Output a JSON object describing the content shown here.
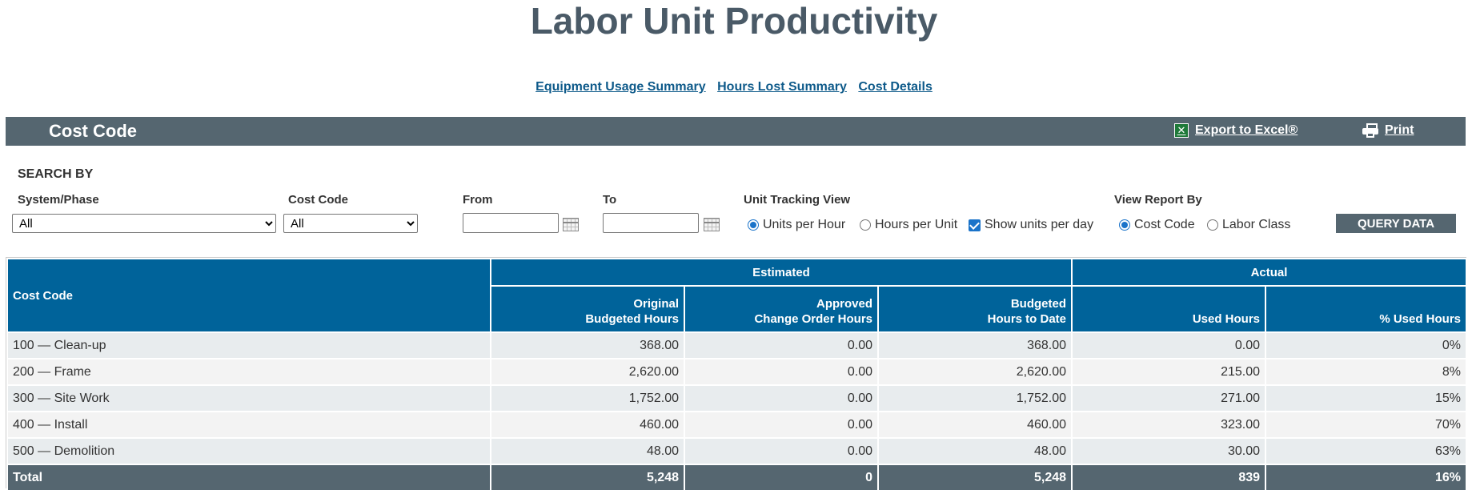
{
  "page_title": "Labor Unit Productivity",
  "nav_links": [
    "Equipment Usage Summary",
    "Hours Lost Summary",
    "Cost Details"
  ],
  "header": {
    "title": "Cost Code",
    "export_label": "Export to Excel®",
    "print_label": "Print"
  },
  "search": {
    "heading": "SEARCH BY",
    "system_phase": {
      "label": "System/Phase",
      "value": "All"
    },
    "cost_code": {
      "label": "Cost Code",
      "value": "All"
    },
    "from": {
      "label": "From",
      "value": ""
    },
    "to": {
      "label": "To",
      "value": ""
    },
    "unit_tracking": {
      "label": "Unit Tracking View",
      "units_per_hour": "Units per Hour",
      "hours_per_unit": "Hours per Unit",
      "show_units_per_day": "Show units per day"
    },
    "view_report": {
      "label": "View Report By",
      "cost_code": "Cost Code",
      "labor_class": "Labor Class"
    },
    "query_button": "QUERY DATA"
  },
  "table": {
    "col_cost_code": "Cost Code",
    "group_estimated": "Estimated",
    "group_actual": "Actual",
    "h_orig_1": "Original",
    "h_orig_2": "Budgeted Hours",
    "h_appr_1": "Approved",
    "h_appr_2": "Change Order Hours",
    "h_budg_1": "Budgeted",
    "h_budg_2": "Hours to Date",
    "h_used": "Used Hours",
    "h_pct": "% Used Hours",
    "rows": [
      {
        "code": "100 — Clean-up",
        "orig": "368.00",
        "appr": "0.00",
        "budg": "368.00",
        "used": "0.00",
        "pct": "0%"
      },
      {
        "code": "200 — Frame",
        "orig": "2,620.00",
        "appr": "0.00",
        "budg": "2,620.00",
        "used": "215.00",
        "pct": "8%"
      },
      {
        "code": "300 — Site Work",
        "orig": "1,752.00",
        "appr": "0.00",
        "budg": "1,752.00",
        "used": "271.00",
        "pct": "15%"
      },
      {
        "code": "400 — Install",
        "orig": "460.00",
        "appr": "0.00",
        "budg": "460.00",
        "used": "323.00",
        "pct": "70%"
      },
      {
        "code": "500 — Demolition",
        "orig": "48.00",
        "appr": "0.00",
        "budg": "48.00",
        "used": "30.00",
        "pct": "63%"
      }
    ],
    "total": {
      "label": "Total",
      "orig": "5,248",
      "appr": "0",
      "budg": "5,248",
      "used": "839",
      "pct": "16%"
    }
  },
  "colors": {
    "header_bar": "#556670",
    "table_header": "#00639a",
    "link": "#0e5a8a",
    "accent": "#1a73c9"
  }
}
